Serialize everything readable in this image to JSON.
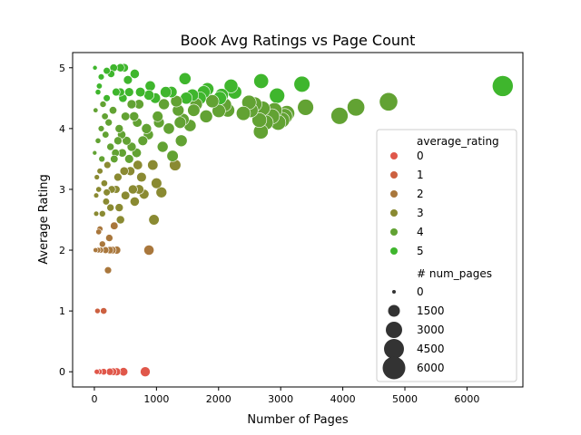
{
  "chart_data": {
    "type": "scatter",
    "title": "Book Avg Ratings vs Page Count",
    "xlabel": "Number of Pages",
    "ylabel": "Average Rating",
    "xlim": [
      -350,
      6900
    ],
    "ylim": [
      -0.25,
      5.25
    ],
    "xticks": [
      0,
      1000,
      2000,
      3000,
      4000,
      5000,
      6000
    ],
    "yticks": [
      0,
      1,
      2,
      3,
      4,
      5
    ],
    "grid": false,
    "legend": {
      "placement": "right",
      "hue_title": "average_rating",
      "hue_entries": [
        {
          "label": "0",
          "color": "#e0574a"
        },
        {
          "label": "1",
          "color": "#cc6040"
        },
        {
          "label": "2",
          "color": "#a9773c"
        },
        {
          "label": "3",
          "color": "#8a8a32"
        },
        {
          "label": "4",
          "color": "#62a233"
        },
        {
          "label": "5",
          "color": "#3fb62d"
        }
      ],
      "size_title": "# num_pages",
      "size_entries": [
        "0",
        "1500",
        "3000",
        "4500",
        "6000"
      ]
    },
    "points": [
      [
        6576,
        4.7
      ],
      [
        4736,
        4.44
      ],
      [
        4212,
        4.35
      ],
      [
        3948,
        4.21
      ],
      [
        3400,
        4.35
      ],
      [
        3342,
        4.73
      ],
      [
        3064,
        4.2
      ],
      [
        3020,
        4.14
      ],
      [
        2960,
        4.1
      ],
      [
        2942,
        4.54
      ],
      [
        2860,
        4.2
      ],
      [
        2710,
        4.33
      ],
      [
        2686,
        4.78
      ],
      [
        2680,
        3.95
      ],
      [
        2656,
        4.14
      ],
      [
        2520,
        4.3
      ],
      [
        2490,
        4.43
      ],
      [
        2260,
        4.6
      ],
      [
        2200,
        4.7
      ],
      [
        2100,
        4.39
      ],
      [
        2004,
        4.29
      ],
      [
        2020,
        4.5
      ],
      [
        1820,
        4.65
      ],
      [
        1800,
        4.2
      ],
      [
        1700,
        4.5
      ],
      [
        1600,
        4.3
      ],
      [
        1580,
        4.55
      ],
      [
        1460,
        4.82
      ],
      [
        1430,
        4.15
      ],
      [
        1400,
        3.8
      ],
      [
        1350,
        4.3
      ],
      [
        1320,
        4.45
      ],
      [
        1300,
        3.4
      ],
      [
        1260,
        3.55
      ],
      [
        1200,
        4.0
      ],
      [
        1150,
        4.6
      ],
      [
        1100,
        3.7
      ],
      [
        1080,
        2.95
      ],
      [
        1020,
        4.2
      ],
      [
        1000,
        3.1
      ],
      [
        980,
        4.5
      ],
      [
        960,
        2.5
      ],
      [
        940,
        3.4
      ],
      [
        900,
        4.7
      ],
      [
        880,
        2.0
      ],
      [
        870,
        3.9
      ],
      [
        820,
        0.0
      ],
      [
        800,
        2.92
      ],
      [
        760,
        3.2
      ],
      [
        740,
        4.6
      ],
      [
        720,
        3.0
      ],
      [
        690,
        4.1
      ],
      [
        680,
        3.6
      ],
      [
        650,
        4.9
      ],
      [
        620,
        3.0
      ],
      [
        600,
        4.4
      ],
      [
        560,
        3.5
      ],
      [
        540,
        4.8
      ],
      [
        520,
        3.8
      ],
      [
        500,
        4.2
      ],
      [
        480,
        3.3
      ],
      [
        460,
        4.5
      ],
      [
        440,
        3.9
      ],
      [
        420,
        2.5
      ],
      [
        400,
        4.0
      ],
      [
        380,
        3.2
      ],
      [
        360,
        2.0
      ],
      [
        350,
        4.6
      ],
      [
        340,
        3.6
      ],
      [
        320,
        2.4
      ],
      [
        300,
        4.3
      ],
      [
        290,
        2.0
      ],
      [
        280,
        3.0
      ],
      [
        270,
        4.9
      ],
      [
        260,
        3.7
      ],
      [
        250,
        0.0
      ],
      [
        240,
        2.2
      ],
      [
        230,
        4.1
      ],
      [
        220,
        1.67
      ],
      [
        210,
        3.4
      ],
      [
        200,
        4.5
      ],
      [
        190,
        2.8
      ],
      [
        180,
        3.9
      ],
      [
        170,
        4.2
      ],
      [
        160,
        3.1
      ],
      [
        150,
        1.0
      ],
      [
        150,
        0.0
      ],
      [
        140,
        4.4
      ],
      [
        130,
        2.6
      ],
      [
        120,
        3.5
      ],
      [
        110,
        4.0
      ],
      [
        100,
        2.0
      ],
      [
        90,
        3.3
      ],
      [
        80,
        4.7
      ],
      [
        70,
        2.3
      ],
      [
        60,
        3.8
      ],
      [
        50,
        1.0
      ],
      [
        40,
        0.0
      ],
      [
        30,
        2.9
      ],
      [
        20,
        4.3
      ],
      [
        10,
        5.0
      ],
      [
        5,
        3.6
      ],
      [
        470,
        0.0
      ],
      [
        360,
        0.0
      ],
      [
        300,
        0.0
      ],
      [
        80,
        0.0
      ],
      [
        60,
        2.0
      ],
      [
        90,
        2.35
      ],
      [
        130,
        2.1
      ],
      [
        180,
        2.0
      ],
      [
        200,
        2.95
      ],
      [
        420,
        4.6
      ],
      [
        560,
        4.6
      ],
      [
        640,
        4.2
      ],
      [
        720,
        4.4
      ],
      [
        780,
        3.8
      ],
      [
        840,
        4.0
      ],
      [
        880,
        4.55
      ],
      [
        1040,
        4.1
      ],
      [
        1120,
        4.4
      ],
      [
        1240,
        4.6
      ],
      [
        1380,
        4.1
      ],
      [
        1480,
        4.5
      ],
      [
        1540,
        4.05
      ],
      [
        1640,
        4.4
      ],
      [
        1760,
        4.6
      ],
      [
        1900,
        4.45
      ],
      [
        2050,
        4.55
      ],
      [
        2150,
        4.3
      ],
      [
        2400,
        4.25
      ],
      [
        2580,
        4.4
      ],
      [
        2760,
        4.1
      ],
      [
        2900,
        4.3
      ],
      [
        3100,
        4.25
      ],
      [
        310,
        5.0
      ],
      [
        420,
        5.0
      ],
      [
        480,
        5.0
      ],
      [
        200,
        4.95
      ],
      [
        110,
        4.85
      ],
      [
        60,
        4.6
      ],
      [
        40,
        3.2
      ],
      [
        70,
        3.0
      ],
      [
        30,
        2.6
      ],
      [
        20,
        2.0
      ],
      [
        250,
        2.0
      ],
      [
        320,
        3.5
      ],
      [
        380,
        3.8
      ],
      [
        450,
        3.6
      ],
      [
        600,
        3.7
      ],
      [
        700,
        3.4
      ],
      [
        650,
        2.8
      ],
      [
        580,
        3.3
      ],
      [
        500,
        2.9
      ],
      [
        400,
        2.7
      ],
      [
        350,
        3.0
      ],
      [
        260,
        2.7
      ]
    ]
  }
}
